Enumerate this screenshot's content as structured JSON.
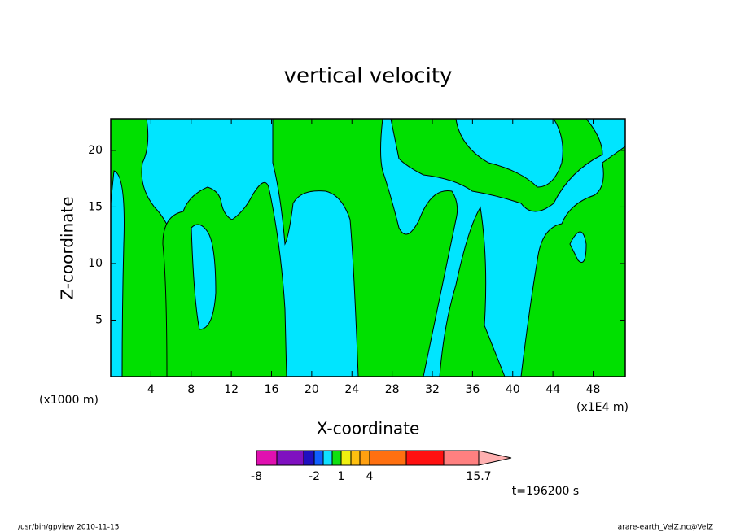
{
  "chart_data": {
    "type": "contour",
    "title": "vertical velocity",
    "x_label": "X-coordinate",
    "y_label": "Z-coordinate",
    "x_unit": "(x1E4 m)",
    "y_unit": "(x1000 m)",
    "xlim": [
      0,
      51.2
    ],
    "ylim": [
      0,
      22.8
    ],
    "xticks": [
      4,
      8,
      12,
      16,
      20,
      24,
      28,
      32,
      36,
      40,
      44,
      48
    ],
    "yticks": [
      5,
      10,
      15,
      20
    ],
    "colorbar": {
      "colors": [
        "#e010b0",
        "#7f10c0",
        "#2010c0",
        "#1060ff",
        "#10e0ff",
        "#10e010",
        "#f0f010",
        "#ffc010",
        "#ffa010",
        "#ff7010",
        "#ff1010",
        "#ff8080",
        "#ffb0b0"
      ],
      "levels": [
        -8,
        -6,
        -3,
        -2,
        -1,
        0,
        1,
        2,
        3,
        4,
        8,
        12,
        15.7
      ],
      "ticks": [
        -8,
        -2,
        1,
        4,
        15.7
      ]
    },
    "time_label": "t=196200 s",
    "footer_left": "/usr/bin/gpview   2010-11-15",
    "footer_right": "arare-earth_VelZ.nc@VelZ"
  }
}
